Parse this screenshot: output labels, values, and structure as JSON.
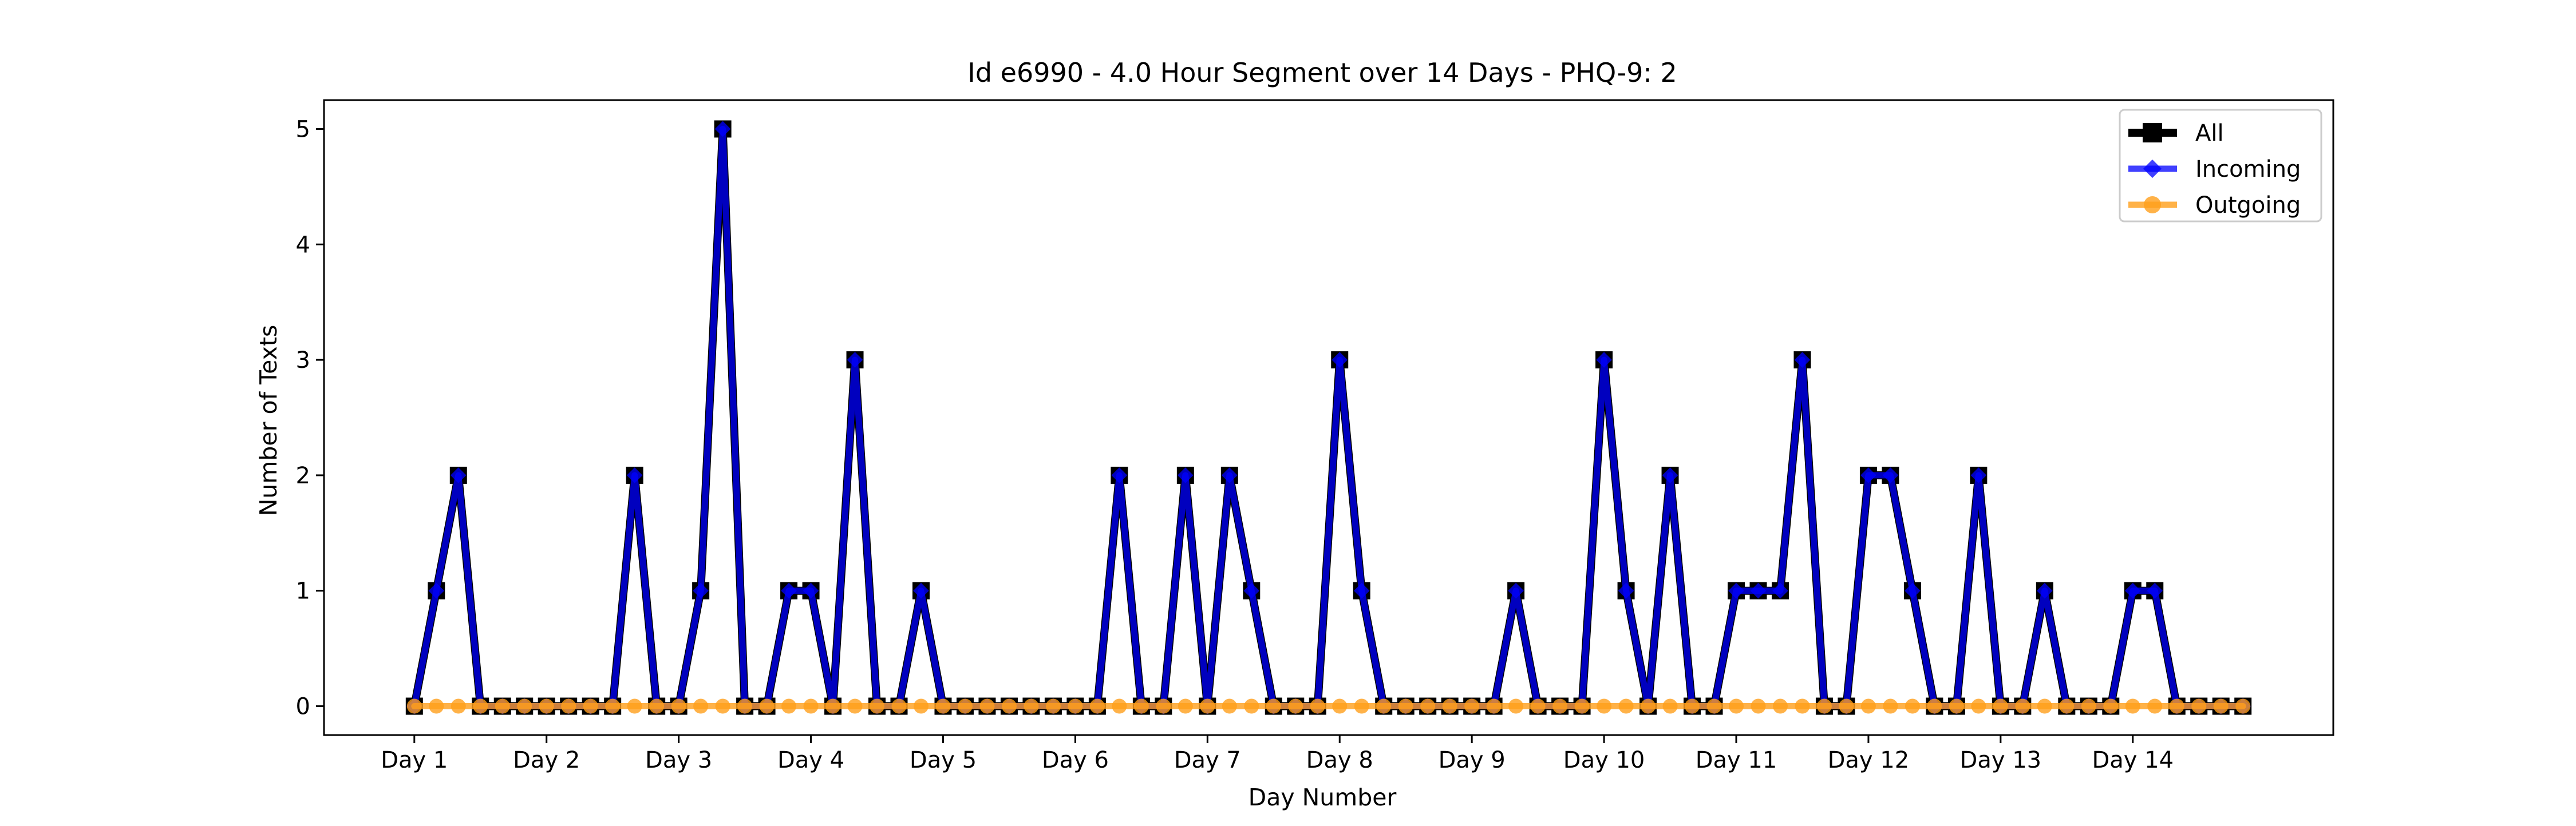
{
  "chart_data": {
    "type": "line",
    "title": "Id e6990 - 4.0 Hour Segment over 14 Days - PHQ-9: 2",
    "xlabel": "Day Number",
    "ylabel": "Number of Texts",
    "x_tick_labels": [
      "Day 1",
      "Day 2",
      "Day 3",
      "Day 4",
      "Day 5",
      "Day 6",
      "Day 7",
      "Day 8",
      "Day 9",
      "Day 10",
      "Day 11",
      "Day 12",
      "Day 13",
      "Day 14"
    ],
    "y_ticks": [
      0,
      1,
      2,
      3,
      4,
      5
    ],
    "xlim": [
      -4.1,
      87.1
    ],
    "ylim": [
      -0.25,
      5.25
    ],
    "segments_per_day": 6,
    "grid": false,
    "legend_position": "top-right",
    "series": [
      {
        "name": "All",
        "color": "#000000",
        "marker": "square",
        "values": [
          0,
          1,
          2,
          0,
          0,
          0,
          0,
          0,
          0,
          0,
          2,
          0,
          0,
          1,
          5,
          0,
          0,
          1,
          1,
          0,
          3,
          0,
          0,
          1,
          0,
          0,
          0,
          0,
          0,
          0,
          0,
          0,
          2,
          0,
          0,
          2,
          0,
          2,
          1,
          0,
          0,
          0,
          3,
          1,
          0,
          0,
          0,
          0,
          0,
          0,
          1,
          0,
          0,
          0,
          3,
          1,
          0,
          2,
          0,
          0,
          1,
          1,
          1,
          3,
          0,
          0,
          2,
          2,
          1,
          0,
          0,
          2,
          0,
          0,
          1,
          0,
          0,
          0,
          1,
          1,
          0,
          0,
          0,
          0
        ]
      },
      {
        "name": "Incoming",
        "color": "#0000ff",
        "marker": "diamond",
        "values": [
          0,
          1,
          2,
          0,
          0,
          0,
          0,
          0,
          0,
          0,
          2,
          0,
          0,
          1,
          5,
          0,
          0,
          1,
          1,
          0,
          3,
          0,
          0,
          1,
          0,
          0,
          0,
          0,
          0,
          0,
          0,
          0,
          2,
          0,
          0,
          2,
          0,
          2,
          1,
          0,
          0,
          0,
          3,
          1,
          0,
          0,
          0,
          0,
          0,
          0,
          1,
          0,
          0,
          0,
          3,
          1,
          0,
          2,
          0,
          0,
          1,
          1,
          1,
          3,
          0,
          0,
          2,
          2,
          1,
          0,
          0,
          2,
          0,
          0,
          1,
          0,
          0,
          0,
          1,
          1,
          0,
          0,
          0,
          0
        ]
      },
      {
        "name": "Outgoing",
        "color": "#ff9f1a",
        "marker": "circle",
        "values": [
          0,
          0,
          0,
          0,
          0,
          0,
          0,
          0,
          0,
          0,
          0,
          0,
          0,
          0,
          0,
          0,
          0,
          0,
          0,
          0,
          0,
          0,
          0,
          0,
          0,
          0,
          0,
          0,
          0,
          0,
          0,
          0,
          0,
          0,
          0,
          0,
          0,
          0,
          0,
          0,
          0,
          0,
          0,
          0,
          0,
          0,
          0,
          0,
          0,
          0,
          0,
          0,
          0,
          0,
          0,
          0,
          0,
          0,
          0,
          0,
          0,
          0,
          0,
          0,
          0,
          0,
          0,
          0,
          0,
          0,
          0,
          0,
          0,
          0,
          0,
          0,
          0,
          0,
          0,
          0,
          0,
          0,
          0,
          0
        ]
      }
    ]
  }
}
